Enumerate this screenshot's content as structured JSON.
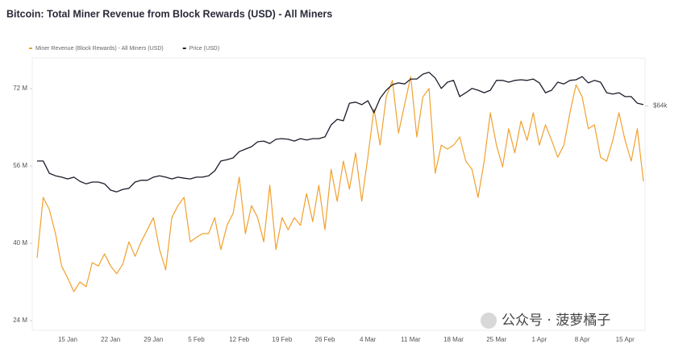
{
  "chart_data": {
    "type": "line",
    "title": "Bitcoin: Total Miner Revenue from Block Rewards (USD) - All Miners",
    "watermark": "公众号 · 菠萝橘子",
    "categories": [
      null,
      null,
      null,
      null,
      null,
      "15 Jan",
      null,
      null,
      null,
      null,
      null,
      null,
      "22 Jan",
      null,
      null,
      null,
      null,
      null,
      null,
      "29 Jan",
      null,
      null,
      null,
      null,
      null,
      null,
      "5 Feb",
      null,
      null,
      null,
      null,
      null,
      null,
      "12 Feb",
      null,
      null,
      null,
      null,
      null,
      null,
      "19 Feb",
      null,
      null,
      null,
      null,
      null,
      null,
      "26 Feb",
      null,
      null,
      null,
      null,
      null,
      null,
      "4 Mar",
      null,
      null,
      null,
      null,
      null,
      null,
      "11 Mar",
      null,
      null,
      null,
      null,
      null,
      null,
      "18 Mar",
      null,
      null,
      null,
      null,
      null,
      null,
      "25 Mar",
      null,
      null,
      null,
      null,
      null,
      null,
      "1 Apr",
      null,
      null,
      null,
      null,
      null,
      null,
      "8 Apr",
      null,
      null,
      null,
      null,
      null,
      null,
      "15 Apr",
      null,
      null,
      null
    ],
    "series": [
      {
        "name": "Miner Revenue (Block Rewards) - All Miners (USD)",
        "color": "#f0a12e",
        "values": [
          37,
          49.5,
          47,
          42,
          35.3,
          32.8,
          30,
          32,
          31,
          36,
          35.3,
          37.8,
          35.3,
          33.7,
          35.7,
          40.3,
          37.3,
          40.3,
          42.8,
          45.3,
          38.7,
          34.5,
          45.3,
          47.8,
          49.5,
          40.3,
          41.2,
          42,
          42,
          45.3,
          38.7,
          43.7,
          46.2,
          53.7,
          42,
          47.8,
          45.3,
          40.3,
          52,
          38.7,
          45.3,
          42.8,
          45.3,
          43.7,
          50.3,
          44.5,
          52,
          42.8,
          55.3,
          48.7,
          57,
          51.2,
          58.7,
          48.7,
          57.8,
          67.8,
          60.3,
          70.3,
          73.7,
          62.8,
          68.7,
          74.5,
          62,
          70.3,
          72,
          54.5,
          60.3,
          59.5,
          60.3,
          62,
          57,
          55.3,
          49.5,
          57,
          67,
          60.3,
          55.8,
          63.7,
          58.7,
          65.3,
          61.3,
          67,
          60.3,
          64.5,
          61.3,
          57.8,
          60.3,
          67,
          72.8,
          70.3,
          63.7,
          64.5,
          57.8,
          57,
          61.3,
          67,
          61.3,
          57,
          63.7,
          52.8
        ]
      },
      {
        "name": "Price (USD)",
        "color": "#1c1c2b",
        "axis": "y2",
        "values": [
          48.3,
          48.3,
          44.8,
          44.1,
          43.7,
          43.2,
          43.7,
          42.5,
          41.8,
          42.3,
          42.3,
          41.8,
          40,
          39.5,
          40.2,
          40.5,
          42.3,
          42.8,
          42.8,
          43.7,
          44.1,
          43.7,
          43.2,
          43.7,
          43.4,
          43.2,
          43.7,
          43.7,
          44.1,
          45.5,
          48.3,
          48.7,
          49.2,
          51,
          51.7,
          52.4,
          53.8,
          54,
          53.3,
          54.5,
          54.7,
          54.5,
          54,
          54.7,
          54.3,
          54.7,
          54.7,
          55.2,
          58.6,
          60.2,
          59.8,
          64.8,
          65.1,
          64.4,
          65.5,
          62.1,
          66.2,
          68.5,
          70.1,
          70.6,
          70.3,
          71.7,
          71.7,
          73.1,
          73.6,
          72,
          69,
          70.8,
          71.3,
          66.7,
          67.8,
          69,
          68.5,
          67.8,
          68.5,
          71.3,
          71.3,
          70.8,
          71.3,
          71.5,
          71.3,
          71.7,
          70.6,
          67.8,
          68.5,
          70.8,
          70.3,
          71.3,
          71.5,
          72.4,
          70.6,
          71.3,
          70.8,
          67.8,
          67.4,
          67.8,
          66.7,
          66.7,
          64.8,
          64.4
        ]
      }
    ],
    "ylim": [
      22,
      80
    ],
    "yticks": [
      {
        "value": 24,
        "label": "24 M"
      },
      {
        "value": 40,
        "label": "40 M"
      },
      {
        "value": 56,
        "label": "56 M"
      },
      {
        "value": 72,
        "label": "72 M"
      }
    ],
    "y2lim": [
      0,
      80
    ],
    "y2ticks": [
      {
        "value": 64,
        "label": "$64k"
      }
    ],
    "grid": false,
    "legend": "top-left"
  }
}
